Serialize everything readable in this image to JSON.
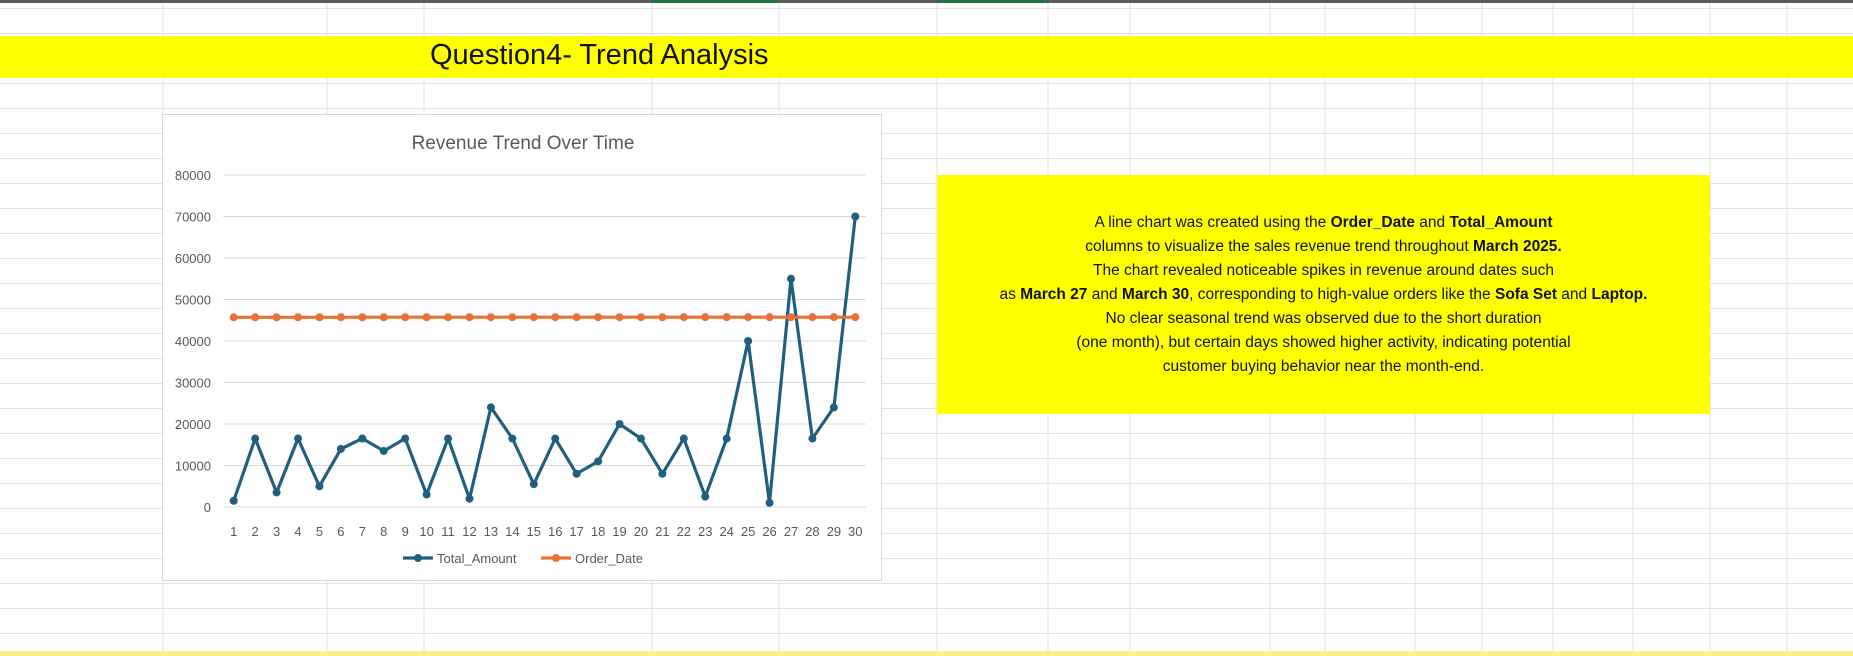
{
  "sheet": {
    "title": "Question4- Trend Analysis",
    "band_color": "#ffff00",
    "gridline_color": "#e2e2e2"
  },
  "chart_data": {
    "type": "line",
    "title": "Revenue Trend Over Time",
    "xlabel": "",
    "ylabel": "",
    "categories": [
      "1",
      "2",
      "3",
      "4",
      "5",
      "6",
      "7",
      "8",
      "9",
      "10",
      "11",
      "12",
      "13",
      "14",
      "15",
      "16",
      "17",
      "18",
      "19",
      "20",
      "21",
      "22",
      "23",
      "24",
      "25",
      "26",
      "27",
      "28",
      "29",
      "30"
    ],
    "ylim": [
      0,
      80000
    ],
    "yticks": [
      "0",
      "10000",
      "20000",
      "30000",
      "40000",
      "50000",
      "60000",
      "70000",
      "80000"
    ],
    "grid": true,
    "legend_position": "bottom",
    "series": [
      {
        "name": "Total_Amount",
        "color": "#1f5f7f",
        "values": [
          1500,
          16500,
          3500,
          16500,
          5000,
          14000,
          16500,
          13500,
          16500,
          3000,
          16500,
          2000,
          24000,
          16500,
          5500,
          16500,
          8000,
          11000,
          20000,
          16500,
          8000,
          16500,
          2500,
          16500,
          40000,
          1000,
          55000,
          16500,
          24000,
          70000
        ]
      },
      {
        "name": "Order_Date",
        "color": "#ed7032",
        "values": [
          45717,
          45718,
          45719,
          45720,
          45721,
          45722,
          45723,
          45724,
          45725,
          45726,
          45727,
          45728,
          45729,
          45730,
          45731,
          45732,
          45733,
          45734,
          45735,
          45736,
          45737,
          45738,
          45739,
          45740,
          45741,
          45742,
          45743,
          45744,
          45745,
          45746
        ]
      }
    ]
  },
  "note": {
    "lines": [
      [
        {
          "t": "A line chart was created using the "
        },
        {
          "t": "Order_Date",
          "b": true
        },
        {
          "t": " and "
        },
        {
          "t": "Total_Amount",
          "b": true
        }
      ],
      [
        {
          "t": "columns to visualize the sales revenue trend throughout "
        },
        {
          "t": "March 2025.",
          "b": true
        }
      ],
      [
        {
          "t": "The chart revealed noticeable spikes in revenue around dates such"
        }
      ],
      [
        {
          "t": "as "
        },
        {
          "t": "March 27",
          "b": true
        },
        {
          "t": " and "
        },
        {
          "t": "March 30",
          "b": true
        },
        {
          "t": ", corresponding to high-value orders like the "
        },
        {
          "t": "Sofa Set",
          "b": true
        },
        {
          "t": " and "
        },
        {
          "t": "Laptop.",
          "b": true
        }
      ],
      [
        {
          "t": "No clear seasonal trend was observed due to the short duration"
        }
      ],
      [
        {
          "t": "(one month), but certain days showed higher activity, indicating potential"
        }
      ],
      [
        {
          "t": "customer buying behavior near the month-end."
        }
      ]
    ]
  }
}
